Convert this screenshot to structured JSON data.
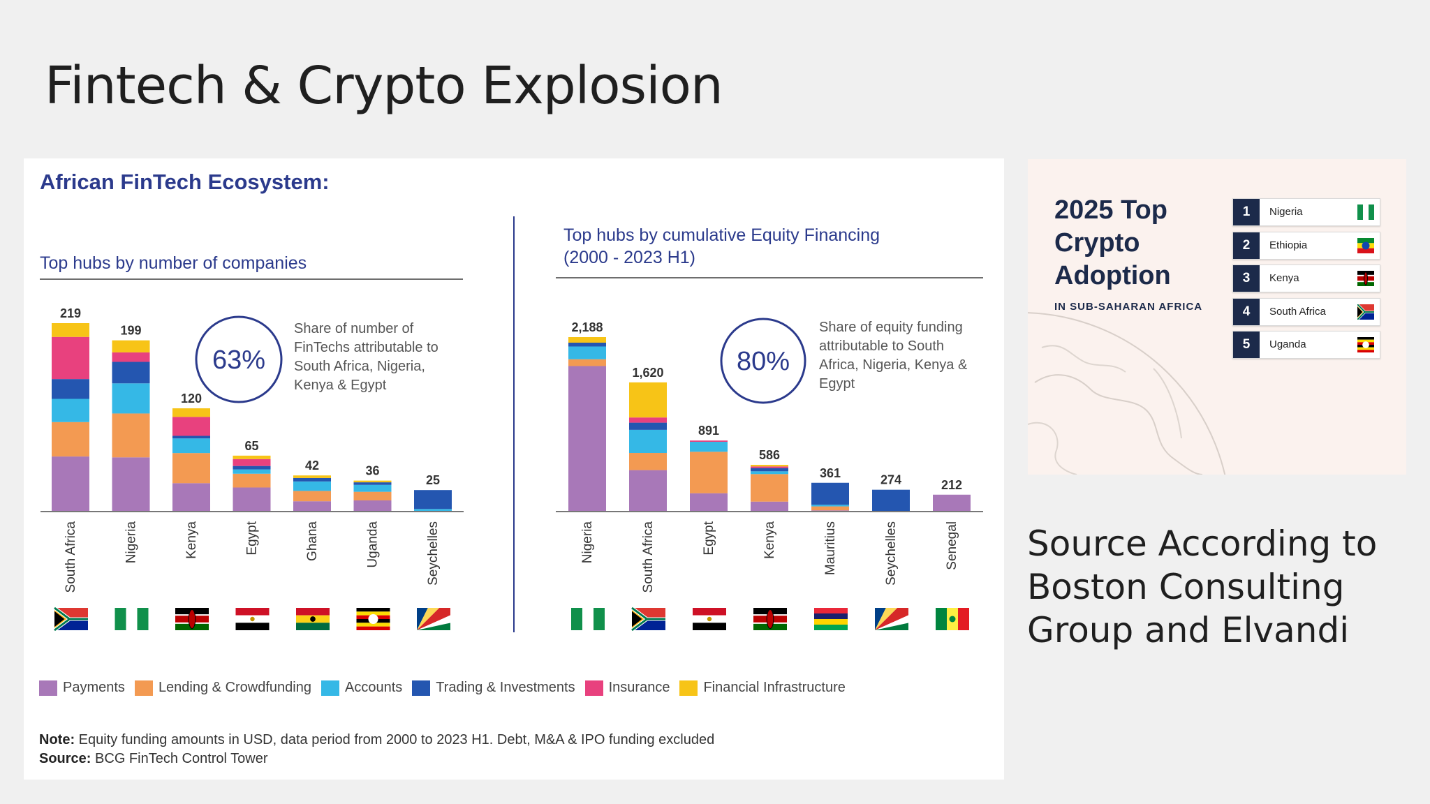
{
  "slide": {
    "title": "Fintech & Crypto Explosion",
    "source_note": "Source According to Boston Consulting Group and Elvandi"
  },
  "fintech_panel": {
    "title": "African FinTech Ecosystem:",
    "note_label": "Note:",
    "note_text": "Equity funding amounts in USD, data period from 2000 to 2023 H1. Debt, M&A & IPO funding excluded",
    "source_label": "Source:",
    "source_text": "BCG FinTech Control Tower"
  },
  "colors": {
    "Payments": "#a878b8",
    "Lending & Crowdfunding": "#f39a52",
    "Accounts": "#35b8e6",
    "Trading & Investments": "#2456b0",
    "Insurance": "#e8417e",
    "Financial Infrastructure": "#f7c417",
    "accent": "#2b3a8c"
  },
  "legend": [
    "Payments",
    "Lending & Crowdfunding",
    "Accounts",
    "Trading & Investments",
    "Insurance",
    "Financial Infrastructure"
  ],
  "chart_data": [
    {
      "type": "bar",
      "stacked": true,
      "title": "Top hubs by number of companies",
      "categories": [
        "South Africa",
        "Nigeria",
        "Kenya",
        "Egypt",
        "Ghana",
        "Uganda",
        "Seychelles"
      ],
      "totals": [
        219,
        199,
        120,
        65,
        42,
        36,
        25
      ],
      "total_labels": [
        "219",
        "199",
        "120",
        "65",
        "42",
        "36",
        "25"
      ],
      "series": [
        {
          "name": "Payments",
          "values": [
            64,
            63,
            33,
            28,
            12,
            13,
            0
          ]
        },
        {
          "name": "Lending & Crowdfunding",
          "values": [
            40,
            51,
            35,
            16,
            12,
            10,
            0
          ]
        },
        {
          "name": "Accounts",
          "values": [
            27,
            35,
            17,
            5,
            11,
            8,
            3
          ]
        },
        {
          "name": "Trading & Investments",
          "values": [
            23,
            25,
            3,
            4,
            4,
            3,
            22
          ]
        },
        {
          "name": "Insurance",
          "values": [
            49,
            11,
            22,
            8,
            0,
            0,
            0
          ]
        },
        {
          "name": "Financial Infrastructure",
          "values": [
            16,
            14,
            10,
            4,
            3,
            2,
            0
          ]
        }
      ],
      "flags": [
        "south-africa",
        "nigeria",
        "kenya",
        "egypt",
        "ghana",
        "uganda",
        "seychelles"
      ],
      "callout": {
        "value": "63%",
        "text": [
          "Share of number of",
          "FinTechs attributable to",
          "South Africa, Nigeria,",
          "Kenya & Egypt"
        ]
      }
    },
    {
      "type": "bar",
      "stacked": true,
      "title": [
        "Top hubs by cumulative Equity Financing",
        "(2000 - 2023 H1)"
      ],
      "categories": [
        "Nigeria",
        "South Africa",
        "Egypt",
        "Kenya",
        "Mauritius",
        "Seychelles",
        "Senegal"
      ],
      "totals": [
        2188,
        1620,
        891,
        586,
        361,
        274,
        212
      ],
      "total_labels": [
        "2,188",
        "1,620",
        "891",
        "586",
        "361",
        "274",
        "212"
      ],
      "series": [
        {
          "name": "Payments",
          "values": [
            1825,
            520,
            230,
            125,
            15,
            0,
            212
          ]
        },
        {
          "name": "Lending & Crowdfunding",
          "values": [
            85,
            215,
            520,
            345,
            50,
            0,
            0
          ]
        },
        {
          "name": "Accounts",
          "values": [
            160,
            290,
            125,
            35,
            20,
            0,
            0
          ]
        },
        {
          "name": "Trading & Investments",
          "values": [
            48,
            90,
            0,
            41,
            276,
            274,
            0
          ]
        },
        {
          "name": "Insurance",
          "values": [
            0,
            65,
            16,
            20,
            0,
            0,
            0
          ]
        },
        {
          "name": "Financial Infrastructure",
          "values": [
            70,
            440,
            0,
            20,
            0,
            0,
            0
          ]
        }
      ],
      "flags": [
        "nigeria",
        "south-africa",
        "egypt",
        "kenya",
        "mauritius",
        "seychelles",
        "senegal"
      ],
      "callout": {
        "value": "80%",
        "text": [
          "Share of equity funding",
          "attributable to South",
          "Africa, Nigeria, Kenya &",
          "Egypt"
        ]
      }
    }
  ],
  "crypto_ranking": {
    "title_lines": [
      "2025 Top",
      "Crypto",
      "Adoption"
    ],
    "subtitle": "IN SUB-SAHARAN AFRICA",
    "items": [
      {
        "rank": "1",
        "country": "Nigeria",
        "flag": "nigeria"
      },
      {
        "rank": "2",
        "country": "Ethiopia",
        "flag": "ethiopia"
      },
      {
        "rank": "3",
        "country": "Kenya",
        "flag": "kenya"
      },
      {
        "rank": "4",
        "country": "South Africa",
        "flag": "south-africa"
      },
      {
        "rank": "5",
        "country": "Uganda",
        "flag": "uganda"
      }
    ]
  }
}
